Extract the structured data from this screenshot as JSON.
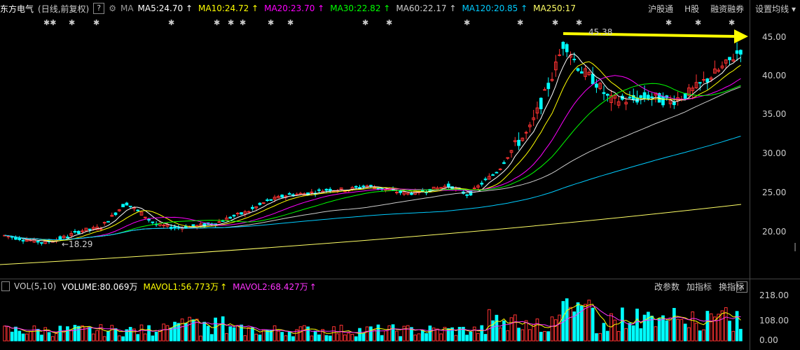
{
  "header": {
    "stock_name": "东方电气",
    "period": "(日线,前复权)",
    "help_glyph": "?",
    "ma_label": "MA",
    "indicators": [
      {
        "text": "MA5:24.70",
        "arrow": "↑",
        "color": "#ffffff"
      },
      {
        "text": "MA10:24.72",
        "arrow": "↑",
        "color": "#ffff00"
      },
      {
        "text": "MA20:23.70",
        "arrow": "↑",
        "color": "#ff00ff"
      },
      {
        "text": "MA30:22.82",
        "arrow": "↑",
        "color": "#00ff00"
      },
      {
        "text": "MA60:22.17",
        "arrow": "↑",
        "color": "#cccccc"
      },
      {
        "text": "MA120:20.85",
        "arrow": "↑",
        "color": "#00ccff"
      },
      {
        "text": "MA250:17",
        "arrow": "",
        "color": "#ffff66"
      }
    ],
    "menu": [
      "沪股通",
      "H股",
      "融资融券",
      "设置均线"
    ]
  },
  "price_axis": [
    "45.00",
    "40.00",
    "35.00",
    "30.00",
    "25.00",
    "20.00"
  ],
  "annotations": {
    "high": "45.38",
    "low": "18.29"
  },
  "volume": {
    "label": "VOL(5,10)",
    "volume": "VOLUME:80.069万",
    "mavol1": "MAVOL1:56.773万",
    "mavol2": "MAVOL2:68.427万",
    "arrow": "↑",
    "buttons": [
      "改参数",
      "加指标",
      "换指标"
    ],
    "close": "×",
    "axis": [
      "218.00",
      "108.00",
      "0.00"
    ]
  },
  "colors": {
    "up": "#ff3232",
    "down": "#00ffff",
    "arrow": "#ffff00"
  }
}
